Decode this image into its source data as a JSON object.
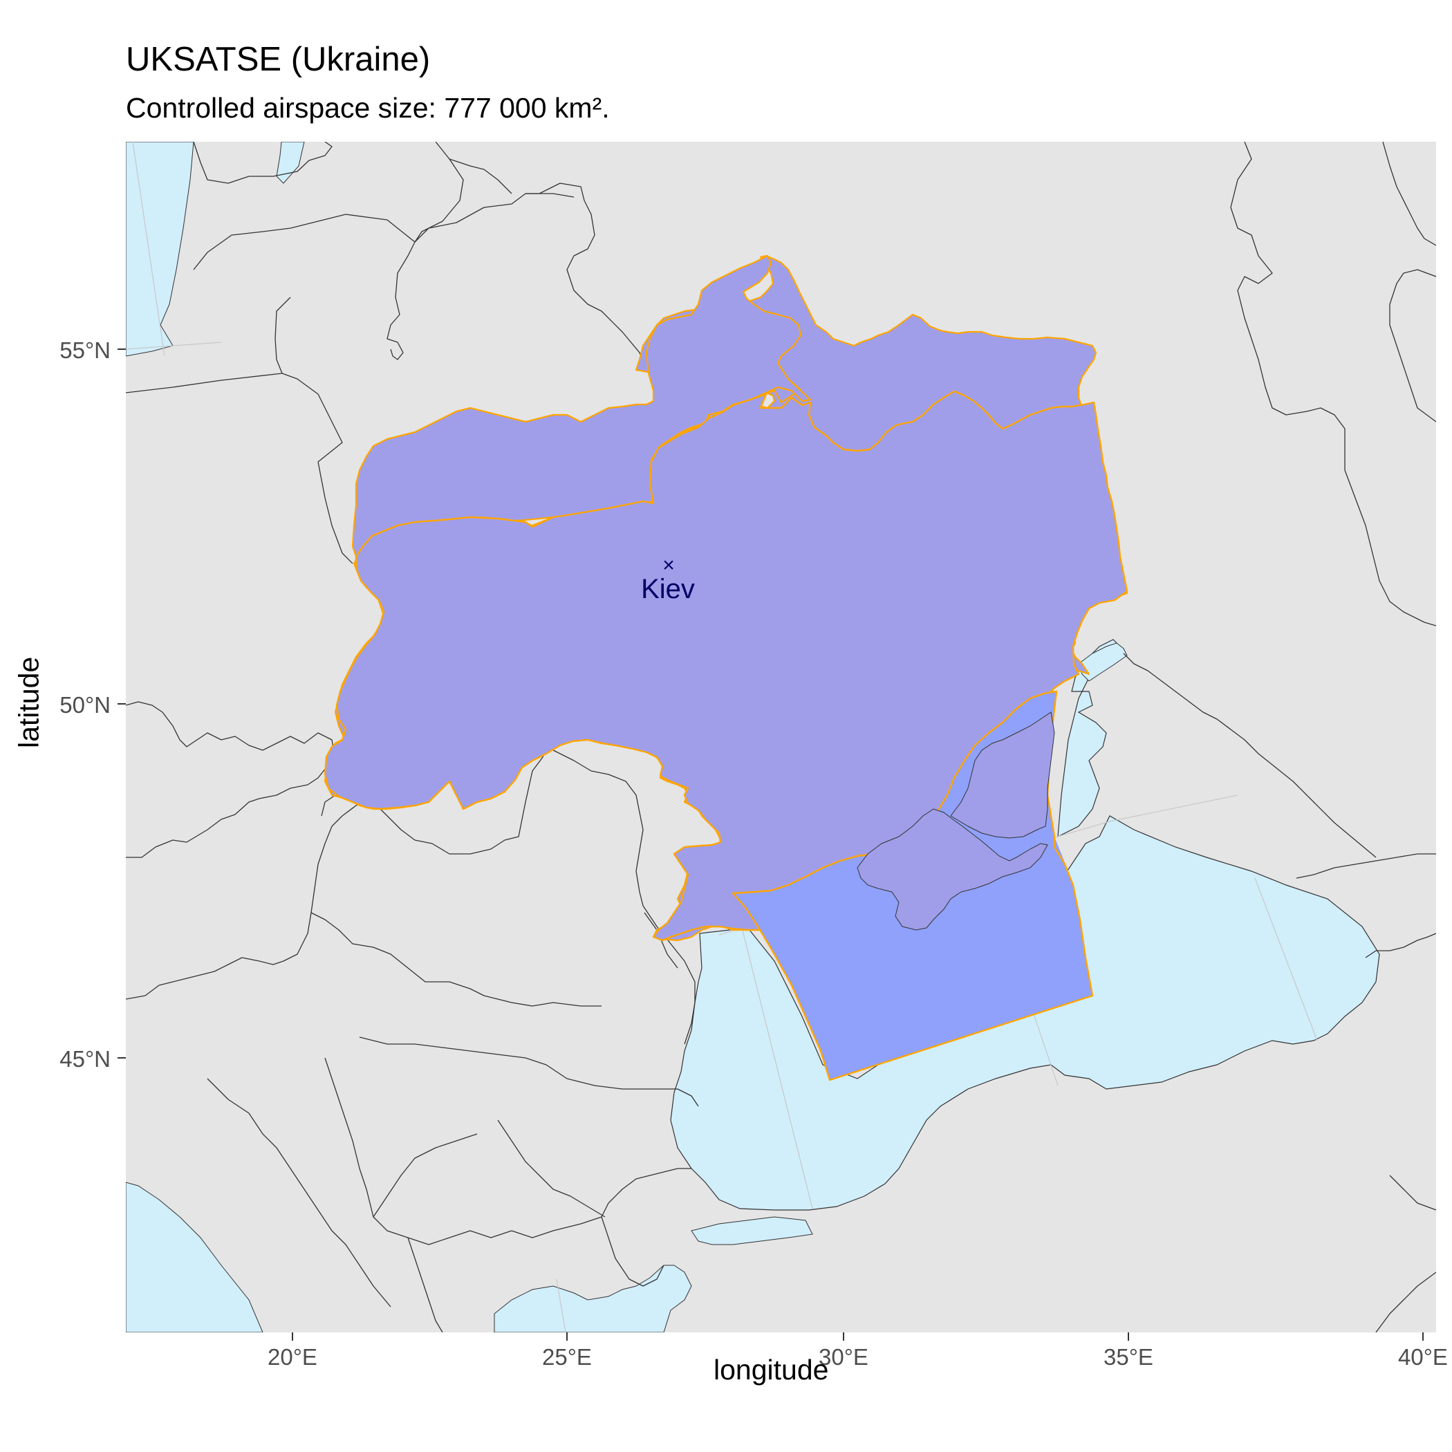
{
  "title": "UKSATSE (Ukraine)",
  "subtitle": "Controlled airspace size: 777 000 km².",
  "xaxis_title": "longitude",
  "yaxis_title": "latitude",
  "x_ticks": [
    "20°E",
    "25°E",
    "30°E",
    "35°E",
    "40°E"
  ],
  "y_ticks": [
    "55°N",
    "50°N",
    "45°N"
  ],
  "city_label": "Kiev",
  "city_marker": "×",
  "colors": {
    "panel": "#e5e5e5",
    "sea": "#d1eefb",
    "fir_fill": "#a09ee9",
    "fir_sea_fill": "#8fa1fb",
    "fir_outline": "#ffa500",
    "borders": "#333333",
    "graticule": "#c8c8c8",
    "city": "#000066"
  }
}
